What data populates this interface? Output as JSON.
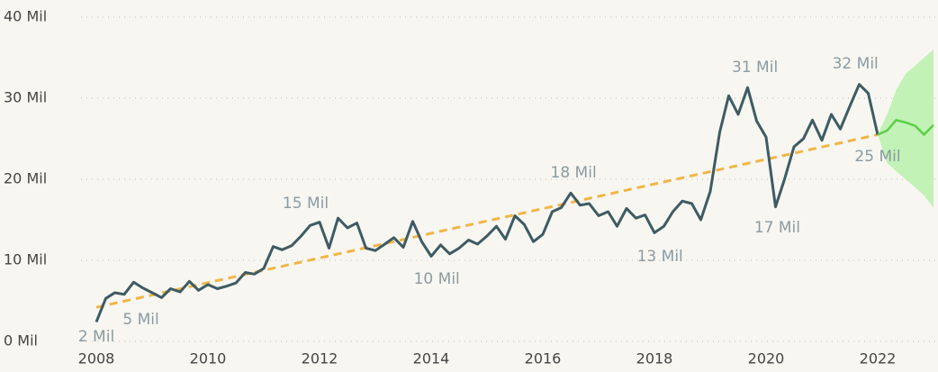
{
  "chart_data": {
    "type": "line",
    "x": [
      2008,
      2008.17,
      2008.33,
      2008.5,
      2008.67,
      2008.83,
      2009,
      2009.17,
      2009.33,
      2009.5,
      2009.67,
      2009.83,
      2010,
      2010.17,
      2010.33,
      2010.5,
      2010.67,
      2010.83,
      2011,
      2011.17,
      2011.33,
      2011.5,
      2011.67,
      2011.83,
      2012,
      2012.17,
      2012.33,
      2012.5,
      2012.67,
      2012.83,
      2013,
      2013.17,
      2013.33,
      2013.5,
      2013.67,
      2013.83,
      2014,
      2014.17,
      2014.33,
      2014.5,
      2014.67,
      2014.83,
      2015,
      2015.17,
      2015.33,
      2015.5,
      2015.67,
      2015.83,
      2016,
      2016.17,
      2016.33,
      2016.5,
      2016.67,
      2016.83,
      2017,
      2017.17,
      2017.33,
      2017.5,
      2017.67,
      2017.83,
      2018,
      2018.17,
      2018.33,
      2018.5,
      2018.67,
      2018.83,
      2019,
      2019.17,
      2019.33,
      2019.5,
      2019.67,
      2019.83,
      2020,
      2020.17,
      2020.33,
      2020.5,
      2020.67,
      2020.83,
      2021,
      2021.17,
      2021.33,
      2021.5,
      2021.67,
      2021.83,
      2022
    ],
    "values": [
      2.4,
      5.3,
      6.0,
      5.8,
      7.3,
      6.6,
      6.0,
      5.4,
      6.5,
      6.1,
      7.4,
      6.3,
      7.0,
      6.5,
      6.8,
      7.2,
      8.5,
      8.3,
      9.0,
      11.7,
      11.3,
      11.8,
      13.0,
      14.3,
      14.7,
      11.5,
      15.2,
      14.0,
      14.6,
      11.5,
      11.2,
      12.0,
      12.8,
      11.6,
      14.8,
      12.3,
      10.5,
      11.9,
      10.8,
      11.5,
      12.5,
      12.0,
      13.0,
      14.2,
      12.6,
      15.5,
      14.4,
      12.3,
      13.2,
      16.0,
      16.5,
      18.3,
      16.8,
      17.0,
      15.5,
      16.0,
      14.2,
      16.4,
      15.2,
      15.6,
      13.4,
      14.2,
      16.0,
      17.3,
      17.0,
      15.0,
      18.5,
      25.8,
      30.3,
      28.0,
      31.3,
      27.2,
      25.2,
      16.6,
      20.0,
      24.0,
      25.0,
      27.3,
      24.8,
      28.0,
      26.2,
      29.0,
      31.7,
      30.6,
      25.5
    ],
    "color": "#3e5b63",
    "trend": {
      "x": [
        2008,
        2022
      ],
      "values": [
        4.2,
        25.5
      ],
      "color": "#f0b646"
    },
    "forecast": {
      "x": [
        2022,
        2022.17,
        2022.33,
        2022.5,
        2022.67,
        2022.83,
        2023
      ],
      "values": [
        25.5,
        26.0,
        27.3,
        27.0,
        26.6,
        25.5,
        26.7
      ],
      "lower": [
        25.5,
        22.0,
        21.0,
        20.0,
        19.0,
        18.0,
        16.5
      ],
      "upper": [
        25.5,
        28.0,
        31.0,
        33.0,
        34.0,
        35.0,
        36.0
      ],
      "color": "#5ccf45",
      "band_color": "#b9f1ab"
    },
    "annotations": [
      {
        "x": 2008,
        "value": 2,
        "label": "2 Mil"
      },
      {
        "x": 2008.8,
        "value": 5,
        "label": "5 Mil"
      },
      {
        "x": 2011.75,
        "value": 15,
        "label": "15 Mil"
      },
      {
        "x": 2014.1,
        "value": 10,
        "label": "10 Mil"
      },
      {
        "x": 2016.55,
        "value": 18,
        "label": "18 Mil"
      },
      {
        "x": 2018.1,
        "value": 13,
        "label": "13 Mil"
      },
      {
        "x": 2019.8,
        "value": 31,
        "label": "31 Mil"
      },
      {
        "x": 2020.2,
        "value": 17,
        "label": "17 Mil"
      },
      {
        "x": 2021.6,
        "value": 32,
        "label": "32 Mil"
      },
      {
        "x": 2022,
        "value": 25,
        "label": "25 Mil"
      }
    ],
    "xlim": [
      2008,
      2023
    ],
    "xticks": [
      2008,
      2010,
      2012,
      2014,
      2016,
      2018,
      2020,
      2022
    ],
    "ylim": [
      0,
      40
    ],
    "yticks": [
      {
        "value": 0,
        "label": "0 Mil"
      },
      {
        "value": 10,
        "label": "10 Mil"
      },
      {
        "value": 20,
        "label": "20 Mil"
      },
      {
        "value": 30,
        "label": "30 Mil"
      },
      {
        "value": 40,
        "label": "40 Mil"
      }
    ],
    "grid": true
  }
}
